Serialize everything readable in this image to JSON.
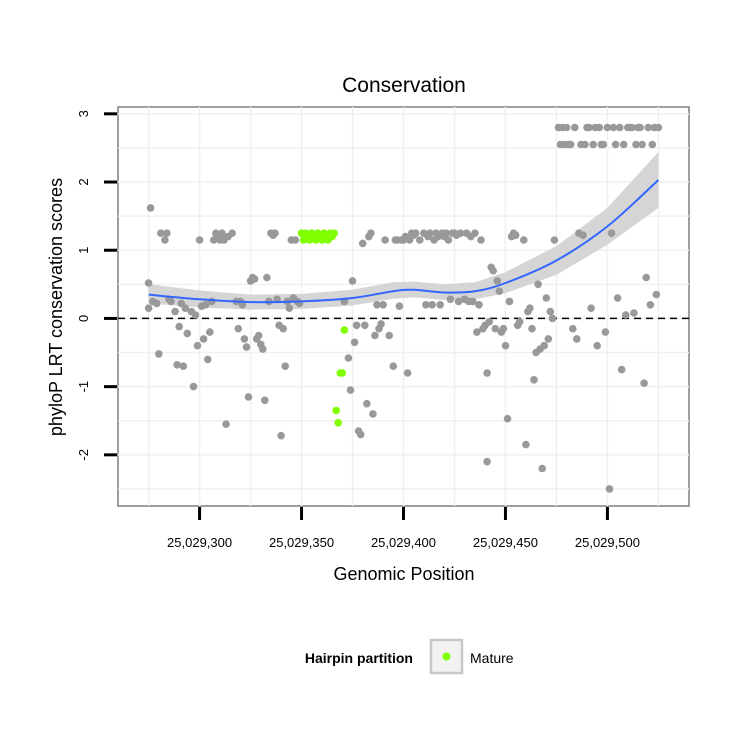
{
  "chart_data": {
    "type": "scatter",
    "title": "Conservation",
    "xlabel": "Genomic Position",
    "ylabel": "phyloP LRT conservation scores",
    "xlim": [
      25029260,
      25029540
    ],
    "ylim": [
      -2.75,
      3.1
    ],
    "x_ticks": [
      25029300,
      25029350,
      25029400,
      25029450,
      25029500
    ],
    "x_tick_labels": [
      "25,029,300",
      "25,029,350",
      "25,029,400",
      "25,029,450",
      "25,029,500"
    ],
    "y_ticks": [
      -2,
      -1,
      0,
      1,
      2,
      3
    ],
    "y_tick_labels": [
      "-2",
      "-1",
      "0",
      "1",
      "2",
      "3"
    ],
    "reference_line_y": 0,
    "legend": {
      "title": "Hairpin partition",
      "entries": [
        {
          "label": "Mature",
          "color": "#7fff00"
        }
      ],
      "position": "bottom"
    },
    "colors": {
      "other": "#999999",
      "mature": "#7fff00",
      "smooth": "#3366ff",
      "band": "#d3d3d3"
    },
    "smooth": {
      "x": [
        25029275,
        25029300,
        25029325,
        25029350,
        25029375,
        25029395,
        25029405,
        25029420,
        25029435,
        25029450,
        25029475,
        25029500,
        25029525
      ],
      "y": [
        0.35,
        0.28,
        0.24,
        0.25,
        0.3,
        0.4,
        0.42,
        0.38,
        0.4,
        0.52,
        0.85,
        1.35,
        2.03
      ],
      "lower": [
        0.22,
        0.16,
        0.13,
        0.14,
        0.19,
        0.29,
        0.31,
        0.27,
        0.28,
        0.37,
        0.64,
        1.08,
        1.62
      ],
      "upper": [
        0.5,
        0.41,
        0.35,
        0.36,
        0.42,
        0.53,
        0.54,
        0.5,
        0.53,
        0.68,
        1.06,
        1.62,
        2.44
      ]
    },
    "series": [
      {
        "name": "Other",
        "points": [
          [
            25029276,
            1.62
          ],
          [
            25029275,
            0.52
          ],
          [
            25029275,
            0.15
          ],
          [
            25029277,
            0.25
          ],
          [
            25029279,
            0.22
          ],
          [
            25029280,
            -0.52
          ],
          [
            25029281,
            1.25
          ],
          [
            25029283,
            1.15
          ],
          [
            25029284,
            1.25
          ],
          [
            25029285,
            0.28
          ],
          [
            25029286,
            0.25
          ],
          [
            25029288,
            0.1
          ],
          [
            25029289,
            -0.68
          ],
          [
            25029290,
            -0.12
          ],
          [
            25029291,
            0.22
          ],
          [
            25029292,
            -0.7
          ],
          [
            25029293,
            0.15
          ],
          [
            25029294,
            -0.22
          ],
          [
            25029296,
            0.1
          ],
          [
            25029297,
            -1.0
          ],
          [
            25029298,
            0.05
          ],
          [
            25029299,
            -0.4
          ],
          [
            25029300,
            1.15
          ],
          [
            25029301,
            0.18
          ],
          [
            25029302,
            -0.3
          ],
          [
            25029303,
            0.2
          ],
          [
            25029304,
            -0.6
          ],
          [
            25029305,
            -0.2
          ],
          [
            25029306,
            0.25
          ],
          [
            25029307,
            1.15
          ],
          [
            25029308,
            1.25
          ],
          [
            25029309,
            1.2
          ],
          [
            25029310,
            1.15
          ],
          [
            25029311,
            1.25
          ],
          [
            25029312,
            1.15
          ],
          [
            25029313,
            -1.55
          ],
          [
            25029314,
            1.2
          ],
          [
            25029316,
            1.25
          ],
          [
            25029318,
            0.25
          ],
          [
            25029319,
            -0.15
          ],
          [
            25029320,
            0.25
          ],
          [
            25029321,
            0.2
          ],
          [
            25029322,
            -0.3
          ],
          [
            25029323,
            -0.42
          ],
          [
            25029324,
            -1.15
          ],
          [
            25029325,
            0.55
          ],
          [
            25029326,
            0.6
          ],
          [
            25029327,
            0.58
          ],
          [
            25029328,
            -0.3
          ],
          [
            25029329,
            -0.25
          ],
          [
            25029330,
            -0.38
          ],
          [
            25029331,
            -0.45
          ],
          [
            25029332,
            -1.2
          ],
          [
            25029333,
            0.6
          ],
          [
            25029334,
            0.25
          ],
          [
            25029335,
            1.25
          ],
          [
            25029336,
            1.22
          ],
          [
            25029337,
            1.25
          ],
          [
            25029338,
            0.28
          ],
          [
            25029339,
            -0.1
          ],
          [
            25029340,
            -1.72
          ],
          [
            25029341,
            -0.15
          ],
          [
            25029342,
            -0.7
          ],
          [
            25029343,
            0.25
          ],
          [
            25029344,
            0.15
          ],
          [
            25029345,
            1.15
          ],
          [
            25029346,
            0.3
          ],
          [
            25029347,
            1.15
          ],
          [
            25029348,
            0.25
          ],
          [
            25029349,
            0.22
          ],
          [
            25029371,
            0.25
          ],
          [
            25029373,
            -0.58
          ],
          [
            25029374,
            -1.05
          ],
          [
            25029375,
            0.55
          ],
          [
            25029376,
            -0.35
          ],
          [
            25029377,
            -0.1
          ],
          [
            25029378,
            -1.65
          ],
          [
            25029379,
            -1.7
          ],
          [
            25029380,
            1.1
          ],
          [
            25029381,
            -0.1
          ],
          [
            25029382,
            -1.25
          ],
          [
            25029383,
            1.2
          ],
          [
            25029384,
            1.25
          ],
          [
            25029385,
            -1.4
          ],
          [
            25029386,
            -0.25
          ],
          [
            25029387,
            0.2
          ],
          [
            25029388,
            -0.15
          ],
          [
            25029389,
            -0.08
          ],
          [
            25029390,
            0.2
          ],
          [
            25029391,
            1.15
          ],
          [
            25029393,
            -0.25
          ],
          [
            25029395,
            -0.7
          ],
          [
            25029396,
            1.15
          ],
          [
            25029397,
            1.15
          ],
          [
            25029398,
            0.18
          ],
          [
            25029399,
            1.15
          ],
          [
            25029400,
            1.15
          ],
          [
            25029401,
            1.2
          ],
          [
            25029402,
            -0.8
          ],
          [
            25029403,
            1.15
          ],
          [
            25029404,
            1.25
          ],
          [
            25029405,
            1.22
          ],
          [
            25029406,
            1.25
          ],
          [
            25029408,
            1.15
          ],
          [
            25029410,
            1.25
          ],
          [
            25029411,
            0.2
          ],
          [
            25029412,
            1.2
          ],
          [
            25029413,
            1.25
          ],
          [
            25029414,
            0.2
          ],
          [
            25029415,
            1.15
          ],
          [
            25029416,
            1.25
          ],
          [
            25029417,
            1.2
          ],
          [
            25029418,
            0.2
          ],
          [
            25029419,
            1.25
          ],
          [
            25029420,
            1.2
          ],
          [
            25029421,
            1.25
          ],
          [
            25029422,
            1.15
          ],
          [
            25029423,
            0.28
          ],
          [
            25029424,
            1.25
          ],
          [
            25029425,
            1.25
          ],
          [
            25029426,
            1.22
          ],
          [
            25029427,
            0.25
          ],
          [
            25029428,
            1.25
          ],
          [
            25029430,
            0.28
          ],
          [
            25029431,
            1.25
          ],
          [
            25029432,
            0.25
          ],
          [
            25029433,
            1.2
          ],
          [
            25029434,
            0.25
          ],
          [
            25029435,
            1.25
          ],
          [
            25029436,
            -0.2
          ],
          [
            25029437,
            0.2
          ],
          [
            25029438,
            1.15
          ],
          [
            25029439,
            -0.15
          ],
          [
            25029440,
            -0.1
          ],
          [
            25029441,
            -2.1
          ],
          [
            25029441,
            -0.8
          ],
          [
            25029442,
            -0.05
          ],
          [
            25029443,
            0.75
          ],
          [
            25029444,
            0.7
          ],
          [
            25029445,
            -0.15
          ],
          [
            25029446,
            0.55
          ],
          [
            25029447,
            0.4
          ],
          [
            25029448,
            -0.2
          ],
          [
            25029449,
            -0.15
          ],
          [
            25029450,
            -0.4
          ],
          [
            25029451,
            -1.47
          ],
          [
            25029452,
            0.25
          ],
          [
            25029453,
            1.2
          ],
          [
            25029454,
            1.25
          ],
          [
            25029455,
            1.22
          ],
          [
            25029456,
            -0.1
          ],
          [
            25029457,
            -0.05
          ],
          [
            25029459,
            1.15
          ],
          [
            25029460,
            -1.85
          ],
          [
            25029461,
            0.1
          ],
          [
            25029462,
            0.15
          ],
          [
            25029463,
            -0.15
          ],
          [
            25029464,
            -0.9
          ],
          [
            25029465,
            -0.5
          ],
          [
            25029466,
            0.5
          ],
          [
            25029467,
            -0.45
          ],
          [
            25029468,
            -2.2
          ],
          [
            25029469,
            -0.4
          ],
          [
            25029470,
            0.3
          ],
          [
            25029471,
            -0.3
          ],
          [
            25029472,
            0.1
          ],
          [
            25029473,
            0.0
          ],
          [
            25029474,
            1.15
          ],
          [
            25029476,
            2.8
          ],
          [
            25029477,
            2.55
          ],
          [
            25029478,
            2.8
          ],
          [
            25029479,
            2.55
          ],
          [
            25029480,
            2.8
          ],
          [
            25029481,
            2.55
          ],
          [
            25029482,
            2.55
          ],
          [
            25029483,
            -0.15
          ],
          [
            25029484,
            2.8
          ],
          [
            25029485,
            -0.3
          ],
          [
            25029486,
            1.25
          ],
          [
            25029487,
            2.55
          ],
          [
            25029488,
            1.22
          ],
          [
            25029489,
            2.55
          ],
          [
            25029490,
            2.8
          ],
          [
            25029491,
            2.8
          ],
          [
            25029492,
            0.15
          ],
          [
            25029493,
            2.55
          ],
          [
            25029494,
            2.8
          ],
          [
            25029495,
            -0.4
          ],
          [
            25029496,
            2.8
          ],
          [
            25029497,
            2.55
          ],
          [
            25029498,
            2.55
          ],
          [
            25029499,
            -0.2
          ],
          [
            25029500,
            2.8
          ],
          [
            25029501,
            -2.5
          ],
          [
            25029502,
            1.25
          ],
          [
            25029503,
            2.8
          ],
          [
            25029504,
            2.55
          ],
          [
            25029505,
            0.3
          ],
          [
            25029506,
            2.8
          ],
          [
            25029507,
            -0.75
          ],
          [
            25029508,
            2.55
          ],
          [
            25029509,
            0.05
          ],
          [
            25029510,
            2.8
          ],
          [
            25029511,
            2.8
          ],
          [
            25029512,
            2.8
          ],
          [
            25029513,
            0.08
          ],
          [
            25029514,
            2.55
          ],
          [
            25029515,
            2.8
          ],
          [
            25029516,
            2.8
          ],
          [
            25029517,
            2.55
          ],
          [
            25029518,
            -0.95
          ],
          [
            25029519,
            0.6
          ],
          [
            25029520,
            2.8
          ],
          [
            25029521,
            0.2
          ],
          [
            25029522,
            2.55
          ],
          [
            25029523,
            2.8
          ],
          [
            25029524,
            0.35
          ],
          [
            25029525,
            2.8
          ]
        ]
      },
      {
        "name": "Mature",
        "points": [
          [
            25029350,
            1.25
          ],
          [
            25029351,
            1.15
          ],
          [
            25029352,
            1.25
          ],
          [
            25029353,
            1.2
          ],
          [
            25029354,
            1.15
          ],
          [
            25029355,
            1.25
          ],
          [
            25029356,
            1.2
          ],
          [
            25029357,
            1.15
          ],
          [
            25029358,
            1.25
          ],
          [
            25029359,
            1.22
          ],
          [
            25029360,
            1.15
          ],
          [
            25029361,
            1.25
          ],
          [
            25029362,
            1.2
          ],
          [
            25029363,
            1.15
          ],
          [
            25029364,
            1.25
          ],
          [
            25029365,
            1.2
          ],
          [
            25029366,
            1.25
          ],
          [
            25029367,
            -1.35
          ],
          [
            25029368,
            -1.53
          ],
          [
            25029369,
            -0.8
          ],
          [
            25029370,
            -0.8
          ],
          [
            25029371,
            -0.17
          ]
        ]
      }
    ]
  }
}
